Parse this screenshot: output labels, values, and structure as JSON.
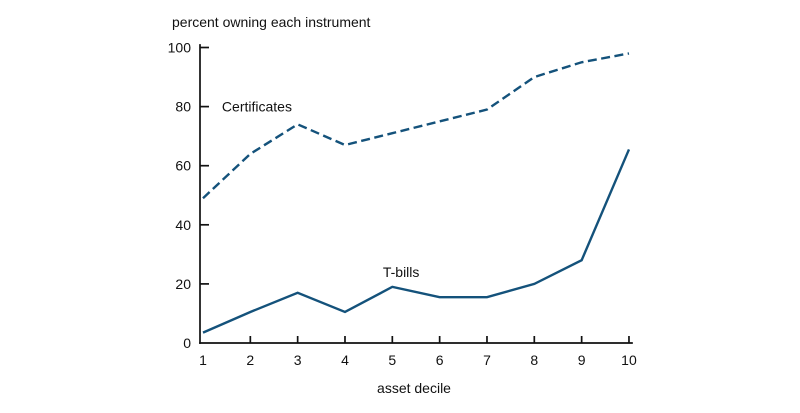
{
  "figure": {
    "title": "percent owning each instrument",
    "xlabel": "asset decile"
  },
  "chart_data": {
    "type": "line",
    "title": "percent owning each instrument",
    "xlabel": "asset decile",
    "ylabel": "",
    "x": [
      1,
      2,
      3,
      4,
      5,
      6,
      7,
      8,
      9,
      10
    ],
    "xlim": [
      1,
      10
    ],
    "ylim": [
      0,
      100
    ],
    "yticks": [
      0,
      20,
      40,
      60,
      80,
      100
    ],
    "grid": false,
    "legend": "inline-labels",
    "axis_color": "#111111",
    "series": [
      {
        "name": "Certificates",
        "style": "dashed",
        "color": "#14527b",
        "values": [
          49,
          64,
          74,
          67,
          71,
          75,
          79,
          90,
          95,
          98
        ],
        "label_position": {
          "x": 1.4,
          "y": 80
        }
      },
      {
        "name": "T-bills",
        "style": "solid",
        "color": "#14527b",
        "values": [
          3.5,
          10.5,
          17,
          10.5,
          19,
          15.5,
          15.5,
          20,
          28,
          65.5
        ],
        "label_position": {
          "x": 4.8,
          "y": 24
        }
      }
    ]
  }
}
